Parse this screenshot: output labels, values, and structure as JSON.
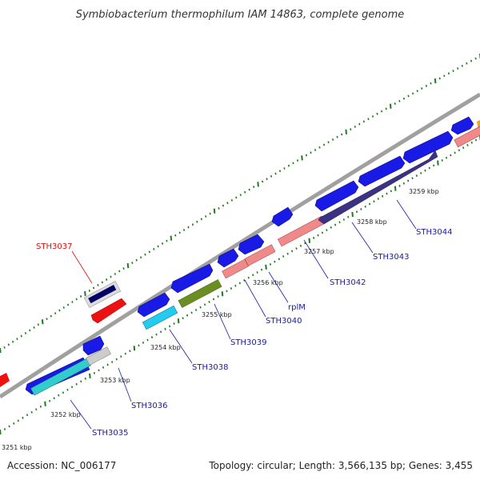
{
  "header": {
    "title": "Symbiobacterium thermophilum IAM 14863, complete genome"
  },
  "footer": {
    "accession": "Accession: NC_006177",
    "summary": "Topology: circular; Length: 3,566,135 bp; Genes: 3,455"
  },
  "colors": {
    "forward_gene": "#1010e0",
    "reverse_gene_dark": "#3a2f86",
    "gene_label_default": "#1a1aa8",
    "gene_label_highlight": "#e01010",
    "tick_marks": "#1f7a1f",
    "backbone": "#909090"
  },
  "scale_labels": [
    "3251 kbp",
    "3252 kbp",
    "3253 kbp",
    "3254 kbp",
    "3255 kbp",
    "3256 kbp",
    "3257 kbp",
    "3258 kbp",
    "3259 kbp"
  ],
  "gene_labels": [
    {
      "name": "STH3035",
      "color": "#1a1aa8"
    },
    {
      "name": "STH3036",
      "color": "#1a1aa8"
    },
    {
      "name": "STH3037",
      "color": "#e01010"
    },
    {
      "name": "STH3038",
      "color": "#1a1aa8"
    },
    {
      "name": "STH3039",
      "color": "#1a1aa8"
    },
    {
      "name": "STH3040",
      "color": "#1a1aa8"
    },
    {
      "name": "rplM",
      "color": "#1a1aa8"
    },
    {
      "name": "STH3042",
      "color": "#1a1aa8"
    },
    {
      "name": "STH3043",
      "color": "#1a1aa8"
    },
    {
      "name": "STH3044",
      "color": "#1a1aa8"
    }
  ]
}
